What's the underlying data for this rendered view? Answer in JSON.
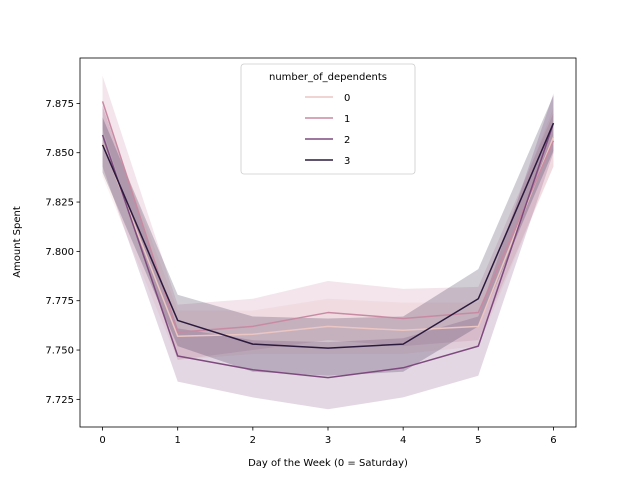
{
  "chart_data": {
    "type": "line",
    "xlabel": "Day of the Week (0 = Saturday)",
    "ylabel": "Amount Spent",
    "x": [
      0,
      1,
      2,
      3,
      4,
      5,
      6
    ],
    "xlim": [
      -0.3,
      6.3
    ],
    "ylim": [
      7.711,
      7.898
    ],
    "xticks": [
      "0",
      "1",
      "2",
      "3",
      "4",
      "5",
      "6"
    ],
    "yticks": [
      "7.725",
      "7.750",
      "7.775",
      "7.800",
      "7.825",
      "7.850",
      "7.875"
    ],
    "ytick_values": [
      7.725,
      7.75,
      7.775,
      7.8,
      7.825,
      7.85,
      7.875
    ],
    "grid": false,
    "legend": {
      "title": "number_of_dependents",
      "position": "upper-center"
    },
    "series": [
      {
        "name": "0",
        "color": "#ebc6c2",
        "values": [
          7.855,
          7.757,
          7.758,
          7.762,
          7.76,
          7.762,
          7.858
        ],
        "lower": [
          7.838,
          7.745,
          7.748,
          7.748,
          7.748,
          7.752,
          7.843
        ],
        "upper": [
          7.873,
          7.77,
          7.77,
          7.776,
          7.774,
          7.774,
          7.873
        ]
      },
      {
        "name": "1",
        "color": "#c88aa2",
        "values": [
          7.876,
          7.759,
          7.762,
          7.769,
          7.766,
          7.769,
          7.856
        ],
        "lower": [
          7.862,
          7.745,
          7.75,
          7.755,
          7.752,
          7.755,
          7.843
        ],
        "upper": [
          7.889,
          7.773,
          7.776,
          7.785,
          7.781,
          7.782,
          7.87
        ]
      },
      {
        "name": "2",
        "color": "#7e4a7e",
        "values": [
          7.859,
          7.747,
          7.74,
          7.736,
          7.741,
          7.752,
          7.865
        ],
        "lower": [
          7.843,
          7.734,
          7.726,
          7.72,
          7.726,
          7.737,
          7.85
        ],
        "upper": [
          7.874,
          7.761,
          7.755,
          7.754,
          7.756,
          7.767,
          7.88
        ]
      },
      {
        "name": "3",
        "color": "#2b1a3e",
        "values": [
          7.854,
          7.765,
          7.753,
          7.751,
          7.753,
          7.776,
          7.865
        ],
        "lower": [
          7.84,
          7.752,
          7.739,
          7.737,
          7.739,
          7.762,
          7.851
        ],
        "upper": [
          7.868,
          7.778,
          7.767,
          7.766,
          7.767,
          7.791,
          7.879
        ]
      }
    ]
  }
}
